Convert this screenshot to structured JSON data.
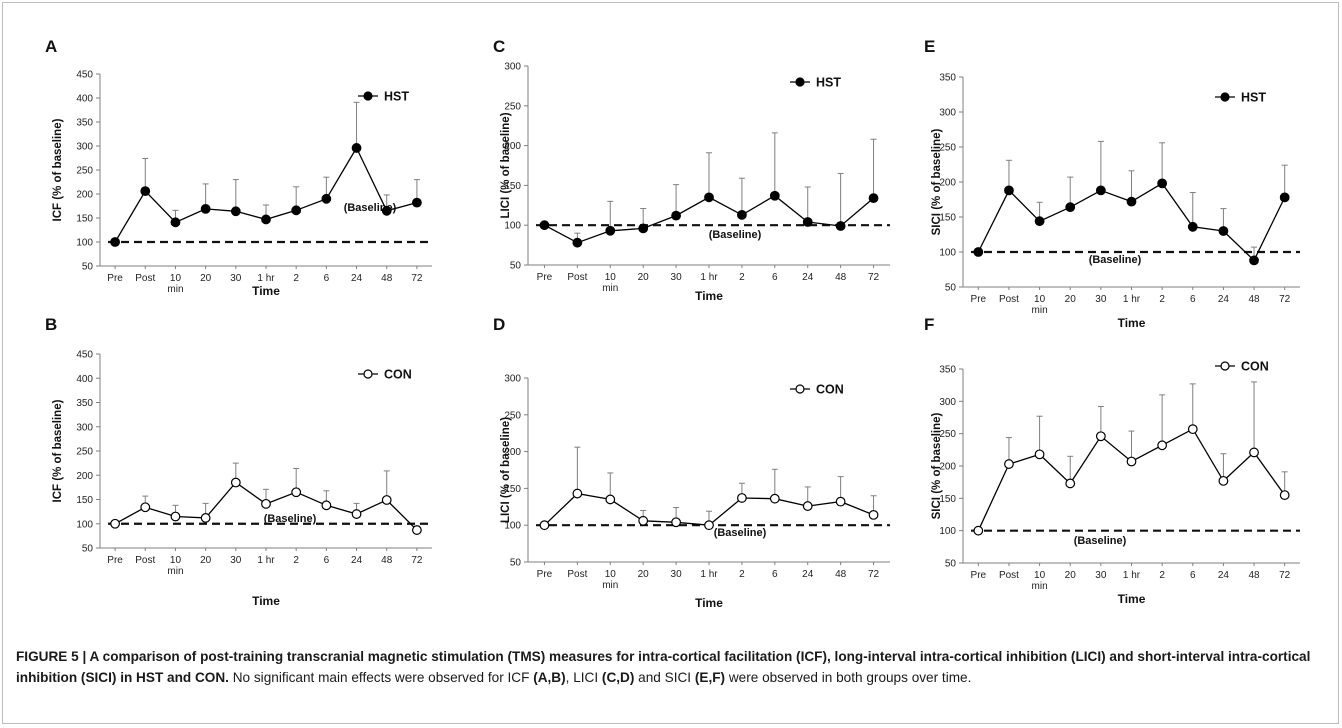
{
  "chart_data": [
    {
      "panel": "A",
      "type": "line",
      "ylabel": "ICF (% of baseline)",
      "xlabel": "Time",
      "ylim": [
        50,
        450
      ],
      "yticks": [
        50,
        100,
        150,
        200,
        250,
        300,
        350,
        400,
        450
      ],
      "categories": [
        "Pre",
        "Post",
        "10 min",
        "20",
        "30",
        "1 hr",
        "2",
        "6",
        "24",
        "48",
        "72"
      ],
      "series": [
        {
          "name": "HST",
          "marker": "filled",
          "values": [
            100,
            206,
            141,
            169,
            164,
            147,
            166,
            190,
            296,
            165,
            182
          ],
          "error_upper": [
            100,
            274,
            166,
            221,
            230,
            177,
            215,
            235,
            391,
            198,
            230
          ]
        }
      ],
      "baseline": 100,
      "baseline_label": "(Baseline)",
      "legend": "top-right"
    },
    {
      "panel": "B",
      "type": "line",
      "ylabel": "ICF (% of baseline)",
      "xlabel": "Time",
      "ylim": [
        50,
        450
      ],
      "yticks": [
        50,
        100,
        150,
        200,
        250,
        300,
        350,
        400,
        450
      ],
      "categories": [
        "Pre",
        "Post",
        "10 min",
        "20",
        "30",
        "1 hr",
        "2",
        "6",
        "24",
        "48",
        "72"
      ],
      "series": [
        {
          "name": "CON",
          "marker": "open",
          "values": [
            100,
            134,
            115,
            112,
            185,
            141,
            165,
            138,
            120,
            149,
            87
          ],
          "error_upper": [
            100,
            157,
            138,
            142,
            225,
            171,
            214,
            168,
            142,
            209,
            95
          ]
        }
      ],
      "baseline": 100,
      "baseline_label": "(Baseline)",
      "legend": "top-right"
    },
    {
      "panel": "C",
      "type": "line",
      "ylabel": "LICI (% of baseline)",
      "xlabel": "Time",
      "ylim": [
        50,
        300
      ],
      "yticks": [
        50,
        100,
        150,
        200,
        250,
        300
      ],
      "categories": [
        "Pre",
        "Post",
        "10 min",
        "20",
        "30",
        "1 hr",
        "2",
        "6",
        "24",
        "48",
        "72"
      ],
      "series": [
        {
          "name": "HST",
          "marker": "filled",
          "values": [
            100,
            78,
            93,
            96,
            112,
            135,
            113,
            137,
            104,
            99,
            134
          ],
          "error_upper": [
            100,
            90,
            130,
            121,
            151,
            191,
            159,
            216,
            148,
            165,
            208
          ]
        }
      ],
      "baseline": 100,
      "baseline_label": "(Baseline)",
      "legend": "top-right"
    },
    {
      "panel": "D",
      "type": "line",
      "ylabel": "LICI (% of baseline)",
      "xlabel": "Time",
      "ylim": [
        50,
        300
      ],
      "yticks": [
        50,
        100,
        150,
        200,
        250,
        300
      ],
      "categories": [
        "Pre",
        "Post",
        "10 min",
        "20",
        "30",
        "1 hr",
        "2",
        "6",
        "24",
        "48",
        "72"
      ],
      "series": [
        {
          "name": "CON",
          "marker": "open",
          "values": [
            100,
            143,
            135,
            106,
            104,
            100,
            137,
            136,
            126,
            132,
            114
          ],
          "error_upper": [
            100,
            206,
            171,
            120,
            124,
            119,
            157,
            176,
            152,
            166,
            140
          ]
        }
      ],
      "baseline": 100,
      "baseline_label": "(Baseline)",
      "legend": "top-right"
    },
    {
      "panel": "E",
      "type": "line",
      "ylabel": "SICI (% of baseline)",
      "xlabel": "Time",
      "ylim": [
        50,
        350
      ],
      "yticks": [
        50,
        100,
        150,
        200,
        250,
        300,
        350
      ],
      "categories": [
        "Pre",
        "Post",
        "10 min",
        "20",
        "30",
        "1 hr",
        "2",
        "6",
        "24",
        "48",
        "72"
      ],
      "series": [
        {
          "name": "HST",
          "marker": "filled",
          "values": [
            100,
            188,
            144,
            164,
            188,
            172,
            198,
            136,
            130,
            88,
            178
          ],
          "error_upper": [
            100,
            231,
            171,
            207,
            258,
            216,
            256,
            185,
            162,
            107,
            224
          ]
        }
      ],
      "baseline": 100,
      "baseline_label": "(Baseline)",
      "legend": "top-right"
    },
    {
      "panel": "F",
      "type": "line",
      "ylabel": "SICI (% of baseline)",
      "xlabel": "Time",
      "ylim": [
        50,
        350
      ],
      "yticks": [
        50,
        100,
        150,
        200,
        250,
        300,
        350
      ],
      "categories": [
        "Pre",
        "Post",
        "10 min",
        "20",
        "30",
        "1 hr",
        "2",
        "6",
        "24",
        "48",
        "72"
      ],
      "series": [
        {
          "name": "CON",
          "marker": "open",
          "values": [
            100,
            203,
            218,
            173,
            246,
            207,
            232,
            257,
            177,
            221,
            155
          ],
          "error_upper": [
            100,
            244,
            277,
            215,
            292,
            254,
            310,
            327,
            219,
            330,
            191
          ]
        }
      ],
      "baseline": 100,
      "baseline_label": "(Baseline)",
      "legend": "top-right"
    }
  ],
  "caption": {
    "figure_label": "FIGURE 5 | ",
    "title": "A comparison of post-training transcranial magnetic stimulation (TMS) measures for intra-cortical facilitation (ICF), long-interval intra-cortical inhibition (LICI) and short-interval intra-cortical inhibition (SICI) in HST and CON.",
    "body_1": " No significant main effects were observed for ICF ",
    "ref_1": "(A,B)",
    "body_2": ", LICI ",
    "ref_2": "(C,D)",
    "body_3": " and SICI ",
    "ref_3": "(E,F)",
    "body_4": " were observed in both groups over time."
  },
  "colors": {
    "line": "#000000",
    "error_bar": "#7f7f7f",
    "axis": "#7f7f7f",
    "text": "#1a1a1a"
  }
}
